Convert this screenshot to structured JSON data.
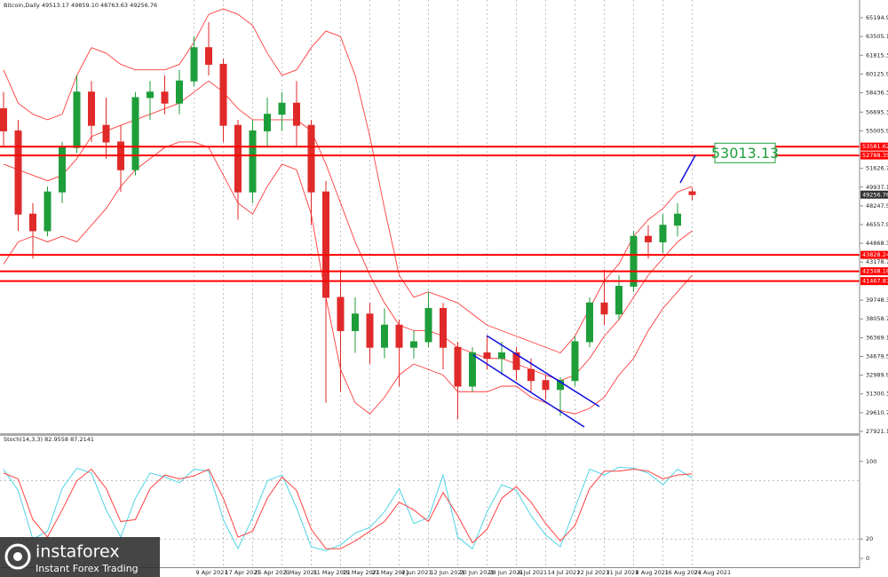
{
  "chart_data": [
    {
      "type": "candlestick",
      "title": "Bitcoin,Daily  49513.17 49859.10 48763.63 49256.76",
      "categories": [
        null,
        null,
        null,
        null,
        null,
        null,
        null,
        null,
        null,
        null,
        null,
        null,
        null,
        "9 Apr 2021",
        null,
        "17 Apr 2021",
        null,
        "25 Apr 2021",
        null,
        "3 May 2021",
        null,
        "11 May 2021",
        null,
        "19 May 2021",
        null,
        "27 May 2021",
        null,
        "4 Jun 2021",
        null,
        "12 Jun 2021",
        null,
        "20 Jun 2021",
        null,
        "28 Jun 2021",
        null,
        "6 Jul 2021",
        null,
        "14 Jul 2021",
        null,
        "22 Jul 2021",
        null,
        "31 Jul 2021",
        null,
        "8 Aug 2021",
        null,
        "16 Aug 2021",
        null,
        "24 Aug 2021"
      ],
      "open": [
        57000,
        55000,
        47500,
        46000,
        49500,
        53500,
        58500,
        55500,
        54000,
        51500,
        58000,
        58500,
        57500,
        59500,
        62500,
        61000,
        55500,
        49500,
        55000,
        56500,
        57500,
        55500,
        49500,
        40000,
        37000,
        38500,
        35500,
        37500,
        35500,
        36000,
        39000,
        35500,
        32000,
        35000,
        34500,
        35000,
        33500,
        32500,
        31700,
        32500,
        36000,
        39500,
        38500,
        41000,
        45500,
        45000,
        46500,
        49513.17
      ],
      "high": [
        58500,
        56000,
        48500,
        50000,
        54000,
        60000,
        59500,
        58000,
        55500,
        58500,
        59500,
        60000,
        60500,
        63500,
        64800,
        61500,
        56000,
        56000,
        58000,
        58500,
        59500,
        56000,
        50500,
        42500,
        40000,
        39500,
        39000,
        38000,
        37000,
        40500,
        39500,
        36000,
        35500,
        36500,
        36000,
        35500,
        34500,
        33000,
        32800,
        36500,
        40000,
        42500,
        42000,
        46000,
        46500,
        47500,
        48500,
        49859.1
      ],
      "low": [
        53500,
        46000,
        43500,
        45500,
        48500,
        53000,
        54000,
        52500,
        49500,
        51000,
        56000,
        56500,
        56500,
        59000,
        60000,
        54000,
        47000,
        48500,
        53500,
        55000,
        53500,
        46500,
        30500,
        31500,
        35000,
        34000,
        34500,
        32000,
        34500,
        35500,
        33500,
        29000,
        31500,
        33500,
        33000,
        32500,
        31500,
        30800,
        29300,
        32000,
        35500,
        37500,
        38000,
        40500,
        43500,
        44000,
        45500,
        48763.63
      ],
      "close": [
        55000,
        47500,
        46000,
        49500,
        53500,
        58500,
        55500,
        54000,
        51500,
        58000,
        58500,
        57500,
        59500,
        62500,
        61000,
        55500,
        49500,
        55000,
        56500,
        57500,
        55500,
        49500,
        40000,
        37000,
        38500,
        35500,
        37500,
        35500,
        36000,
        39000,
        35500,
        32000,
        35000,
        34500,
        35000,
        33500,
        32500,
        31700,
        32500,
        36000,
        39500,
        38500,
        41000,
        45500,
        45000,
        46500,
        47500,
        49256.76
      ],
      "up_color": "#1e9e3a",
      "down_color": "#e02a2a",
      "bands": {
        "color": "#ff3b3b",
        "upper": [
          60500,
          57500,
          56500,
          56000,
          56500,
          60000,
          62500,
          62000,
          61000,
          60500,
          60500,
          60500,
          61000,
          63000,
          65500,
          66000,
          65500,
          64500,
          62000,
          60000,
          60500,
          62500,
          64000,
          63500,
          60000,
          54500,
          48000,
          42000,
          40000,
          40500,
          40000,
          39500,
          38500,
          37500,
          37000,
          36500,
          36000,
          35500,
          35000,
          36500,
          39000,
          41500,
          43000,
          45500,
          47000,
          48000,
          49500,
          50000
        ],
        "middle": [
          52000,
          51500,
          51000,
          50500,
          51000,
          52500,
          54500,
          55000,
          55500,
          56000,
          56500,
          57000,
          57500,
          58500,
          59500,
          58500,
          57000,
          56000,
          56000,
          56000,
          56000,
          55000,
          52000,
          48500,
          45000,
          42000,
          39500,
          37500,
          37000,
          37000,
          36500,
          35500,
          35000,
          34500,
          34500,
          34000,
          33500,
          33000,
          32500,
          33000,
          34500,
          36500,
          38000,
          40000,
          42000,
          43500,
          45000,
          46000
        ],
        "lower": [
          43000,
          45000,
          45500,
          45000,
          45500,
          45000,
          46500,
          48000,
          50000,
          51500,
          52500,
          53500,
          54000,
          54000,
          53500,
          51000,
          48500,
          47500,
          50000,
          52000,
          51500,
          47500,
          40000,
          33500,
          30500,
          29500,
          31000,
          33000,
          34000,
          33500,
          33000,
          31500,
          31500,
          31500,
          32000,
          32000,
          31000,
          30500,
          29800,
          29500,
          30000,
          31000,
          33000,
          34500,
          37000,
          39000,
          40500,
          42000
        ]
      },
      "ylim": [
        27760,
        66475
      ],
      "yticks": [
        {
          "value": 65194.9,
          "label": "65194.90"
        },
        {
          "value": 63505.1,
          "label": "63505.10"
        },
        {
          "value": 61815.3,
          "label": "61815.30"
        },
        {
          "value": 60125.9,
          "label": "60125.90"
        },
        {
          "value": 58436.3,
          "label": "58436.30"
        },
        {
          "value": 56695.3,
          "label": "56695.30"
        },
        {
          "value": 55005.9,
          "label": "55005.90"
        },
        {
          "value": 51626.7,
          "label": "51626.70"
        },
        {
          "value": 49937.1,
          "label": "49937.10"
        },
        {
          "value": 48247.5,
          "label": "48247.50"
        },
        {
          "value": 46557.9,
          "label": "46557.90"
        },
        {
          "value": 44868.3,
          "label": "44868.30"
        },
        {
          "value": 43178.7,
          "label": "43178.70"
        },
        {
          "value": 39748.3,
          "label": "39748.30"
        },
        {
          "value": 38058.7,
          "label": "38058.70"
        },
        {
          "value": 36369.1,
          "label": "36369.10"
        },
        {
          "value": 34679.5,
          "label": "34679.50"
        },
        {
          "value": 32989.9,
          "label": "32989.90"
        },
        {
          "value": 31300.3,
          "label": "31300.30"
        },
        {
          "value": 29610.7,
          "label": "29610.70"
        },
        {
          "value": 27921.1,
          "label": "27921.10"
        }
      ],
      "levels": [
        53581.62,
        52788.35,
        43828.24,
        42348.18,
        41467.87
      ],
      "level_color": "#ff0000",
      "target": 53013.13,
      "target_color": "#1e9e3a"
    },
    {
      "type": "line",
      "title": "Stoch(14,3,3) 82.9558 87.2141",
      "series": [
        {
          "color": "#4fd3e6",
          "values": [
            92,
            70,
            20,
            28,
            72,
            93,
            88,
            50,
            22,
            62,
            88,
            84,
            78,
            92,
            90,
            40,
            10,
            42,
            80,
            86,
            52,
            12,
            8,
            14,
            26,
            32,
            48,
            72,
            36,
            42,
            86,
            22,
            10,
            48,
            76,
            70,
            44,
            24,
            12,
            52,
            92,
            86,
            94,
            93,
            88,
            76,
            92,
            82.9558
          ]
        },
        {
          "color": "#ff4040",
          "values": [
            88,
            82,
            40,
            22,
            50,
            80,
            92,
            72,
            38,
            40,
            72,
            86,
            82,
            85,
            92,
            62,
            22,
            28,
            62,
            84,
            70,
            30,
            10,
            10,
            18,
            28,
            38,
            58,
            50,
            38,
            68,
            44,
            16,
            30,
            62,
            74,
            58,
            36,
            18,
            34,
            72,
            90,
            90,
            92,
            90,
            82,
            86,
            87.2141
          ]
        }
      ],
      "ylim": [
        -4.5,
        124.5
      ],
      "yticks": [
        0,
        20,
        100
      ],
      "levels": [
        20,
        80
      ]
    }
  ],
  "watermark": {
    "brand": "instaforex",
    "tagline": "Instant Forex Trading"
  }
}
